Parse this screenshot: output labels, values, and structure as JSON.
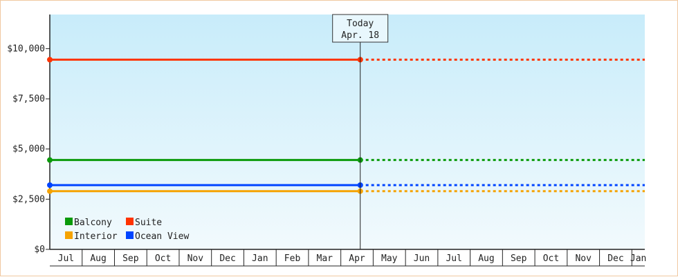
{
  "chart_data": {
    "type": "line",
    "title": "",
    "xlabel": "",
    "ylabel": "",
    "y_ticks": [
      "$0",
      "$2,500",
      "$5,000",
      "$7,500",
      "$10,000"
    ],
    "y_tick_values": [
      0,
      2500,
      5000,
      7500,
      10000
    ],
    "ylim": [
      0,
      11700
    ],
    "x_months": [
      "Jul",
      "Aug",
      "Sep",
      "Oct",
      "Nov",
      "Dec",
      "Jan",
      "Feb",
      "Mar",
      "Apr",
      "May",
      "Jun",
      "Jul",
      "Aug",
      "Sep",
      "Oct",
      "Nov",
      "Dec",
      "Jan"
    ],
    "x_month_start_values": [
      0,
      1,
      2,
      3,
      4,
      5,
      6,
      7,
      8,
      9,
      10,
      11,
      12,
      13,
      14,
      15,
      16,
      17,
      18
    ],
    "xlim": [
      0,
      18.4
    ],
    "today": {
      "label": "Today",
      "date": "Apr. 18",
      "x": 9.6
    },
    "series": [
      {
        "name": "Balcony",
        "color": "#0a9a0a",
        "value": 4450
      },
      {
        "name": "Suite",
        "color": "#ff3300",
        "value": 9450
      },
      {
        "name": "Interior",
        "color": "#f5a300",
        "value": 2900
      },
      {
        "name": "Ocean View",
        "color": "#0044ff",
        "value": 3200
      }
    ],
    "legend_position": "bottom-left",
    "grid": false,
    "background_gradient": [
      "#c8ecfa",
      "#f2fafd"
    ]
  }
}
